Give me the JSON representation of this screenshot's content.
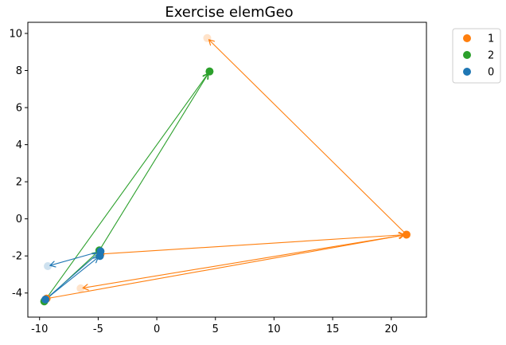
{
  "chart_data": {
    "type": "scatter",
    "title": "Exercise elemGeo",
    "xlabel": "",
    "ylabel": "",
    "xlim": [
      -11,
      23
    ],
    "ylim": [
      -5.3,
      10.6
    ],
    "x_ticks": [
      -10,
      -5,
      0,
      5,
      10,
      15,
      20
    ],
    "y_ticks": [
      -4,
      -2,
      0,
      2,
      4,
      6,
      8,
      10
    ],
    "grid": false,
    "legend_position": "outside-top-right",
    "series": [
      {
        "name": "1",
        "color": "#ff7f0e",
        "points": [
          {
            "x": -9.4,
            "y": -4.3
          },
          {
            "x": -4.8,
            "y": -1.9
          },
          {
            "x": 21.3,
            "y": -0.85
          }
        ],
        "faded_points": [
          {
            "x": 4.3,
            "y": 9.75
          },
          {
            "x": -6.5,
            "y": -3.75
          }
        ],
        "arrows": [
          {
            "from": [
              -9.4,
              -4.3
            ],
            "to": [
              21.3,
              -0.85
            ]
          },
          {
            "from": [
              -4.8,
              -1.9
            ],
            "to": [
              21.3,
              -0.85
            ]
          },
          {
            "from": [
              21.3,
              -0.85
            ],
            "to": [
              4.3,
              9.75
            ]
          },
          {
            "from": [
              21.3,
              -0.85
            ],
            "to": [
              -6.5,
              -3.75
            ]
          }
        ]
      },
      {
        "name": "2",
        "color": "#2ca02c",
        "points": [
          {
            "x": -9.6,
            "y": -4.45
          },
          {
            "x": -4.9,
            "y": -1.7
          },
          {
            "x": 4.5,
            "y": 7.95
          }
        ],
        "faded_points": [],
        "arrows": [
          {
            "from": [
              -9.6,
              -4.45
            ],
            "to": [
              4.5,
              7.95
            ]
          },
          {
            "from": [
              -4.9,
              -1.7
            ],
            "to": [
              4.5,
              7.95
            ]
          },
          {
            "from": [
              -9.6,
              -4.45
            ],
            "to": [
              -4.9,
              -1.7
            ]
          }
        ]
      },
      {
        "name": "0",
        "color": "#1f77b4",
        "points": [
          {
            "x": -9.5,
            "y": -4.35
          },
          {
            "x": -4.8,
            "y": -1.75
          },
          {
            "x": -4.85,
            "y": -2.0
          }
        ],
        "faded_points": [
          {
            "x": -9.3,
            "y": -2.55
          }
        ],
        "arrows": [
          {
            "from": [
              -9.5,
              -4.35
            ],
            "to": [
              -4.8,
              -1.75
            ]
          },
          {
            "from": [
              -9.5,
              -4.35
            ],
            "to": [
              -4.85,
              -2.0
            ]
          },
          {
            "from": [
              -4.8,
              -1.75
            ],
            "to": [
              -9.3,
              -2.55
            ]
          }
        ]
      }
    ]
  }
}
